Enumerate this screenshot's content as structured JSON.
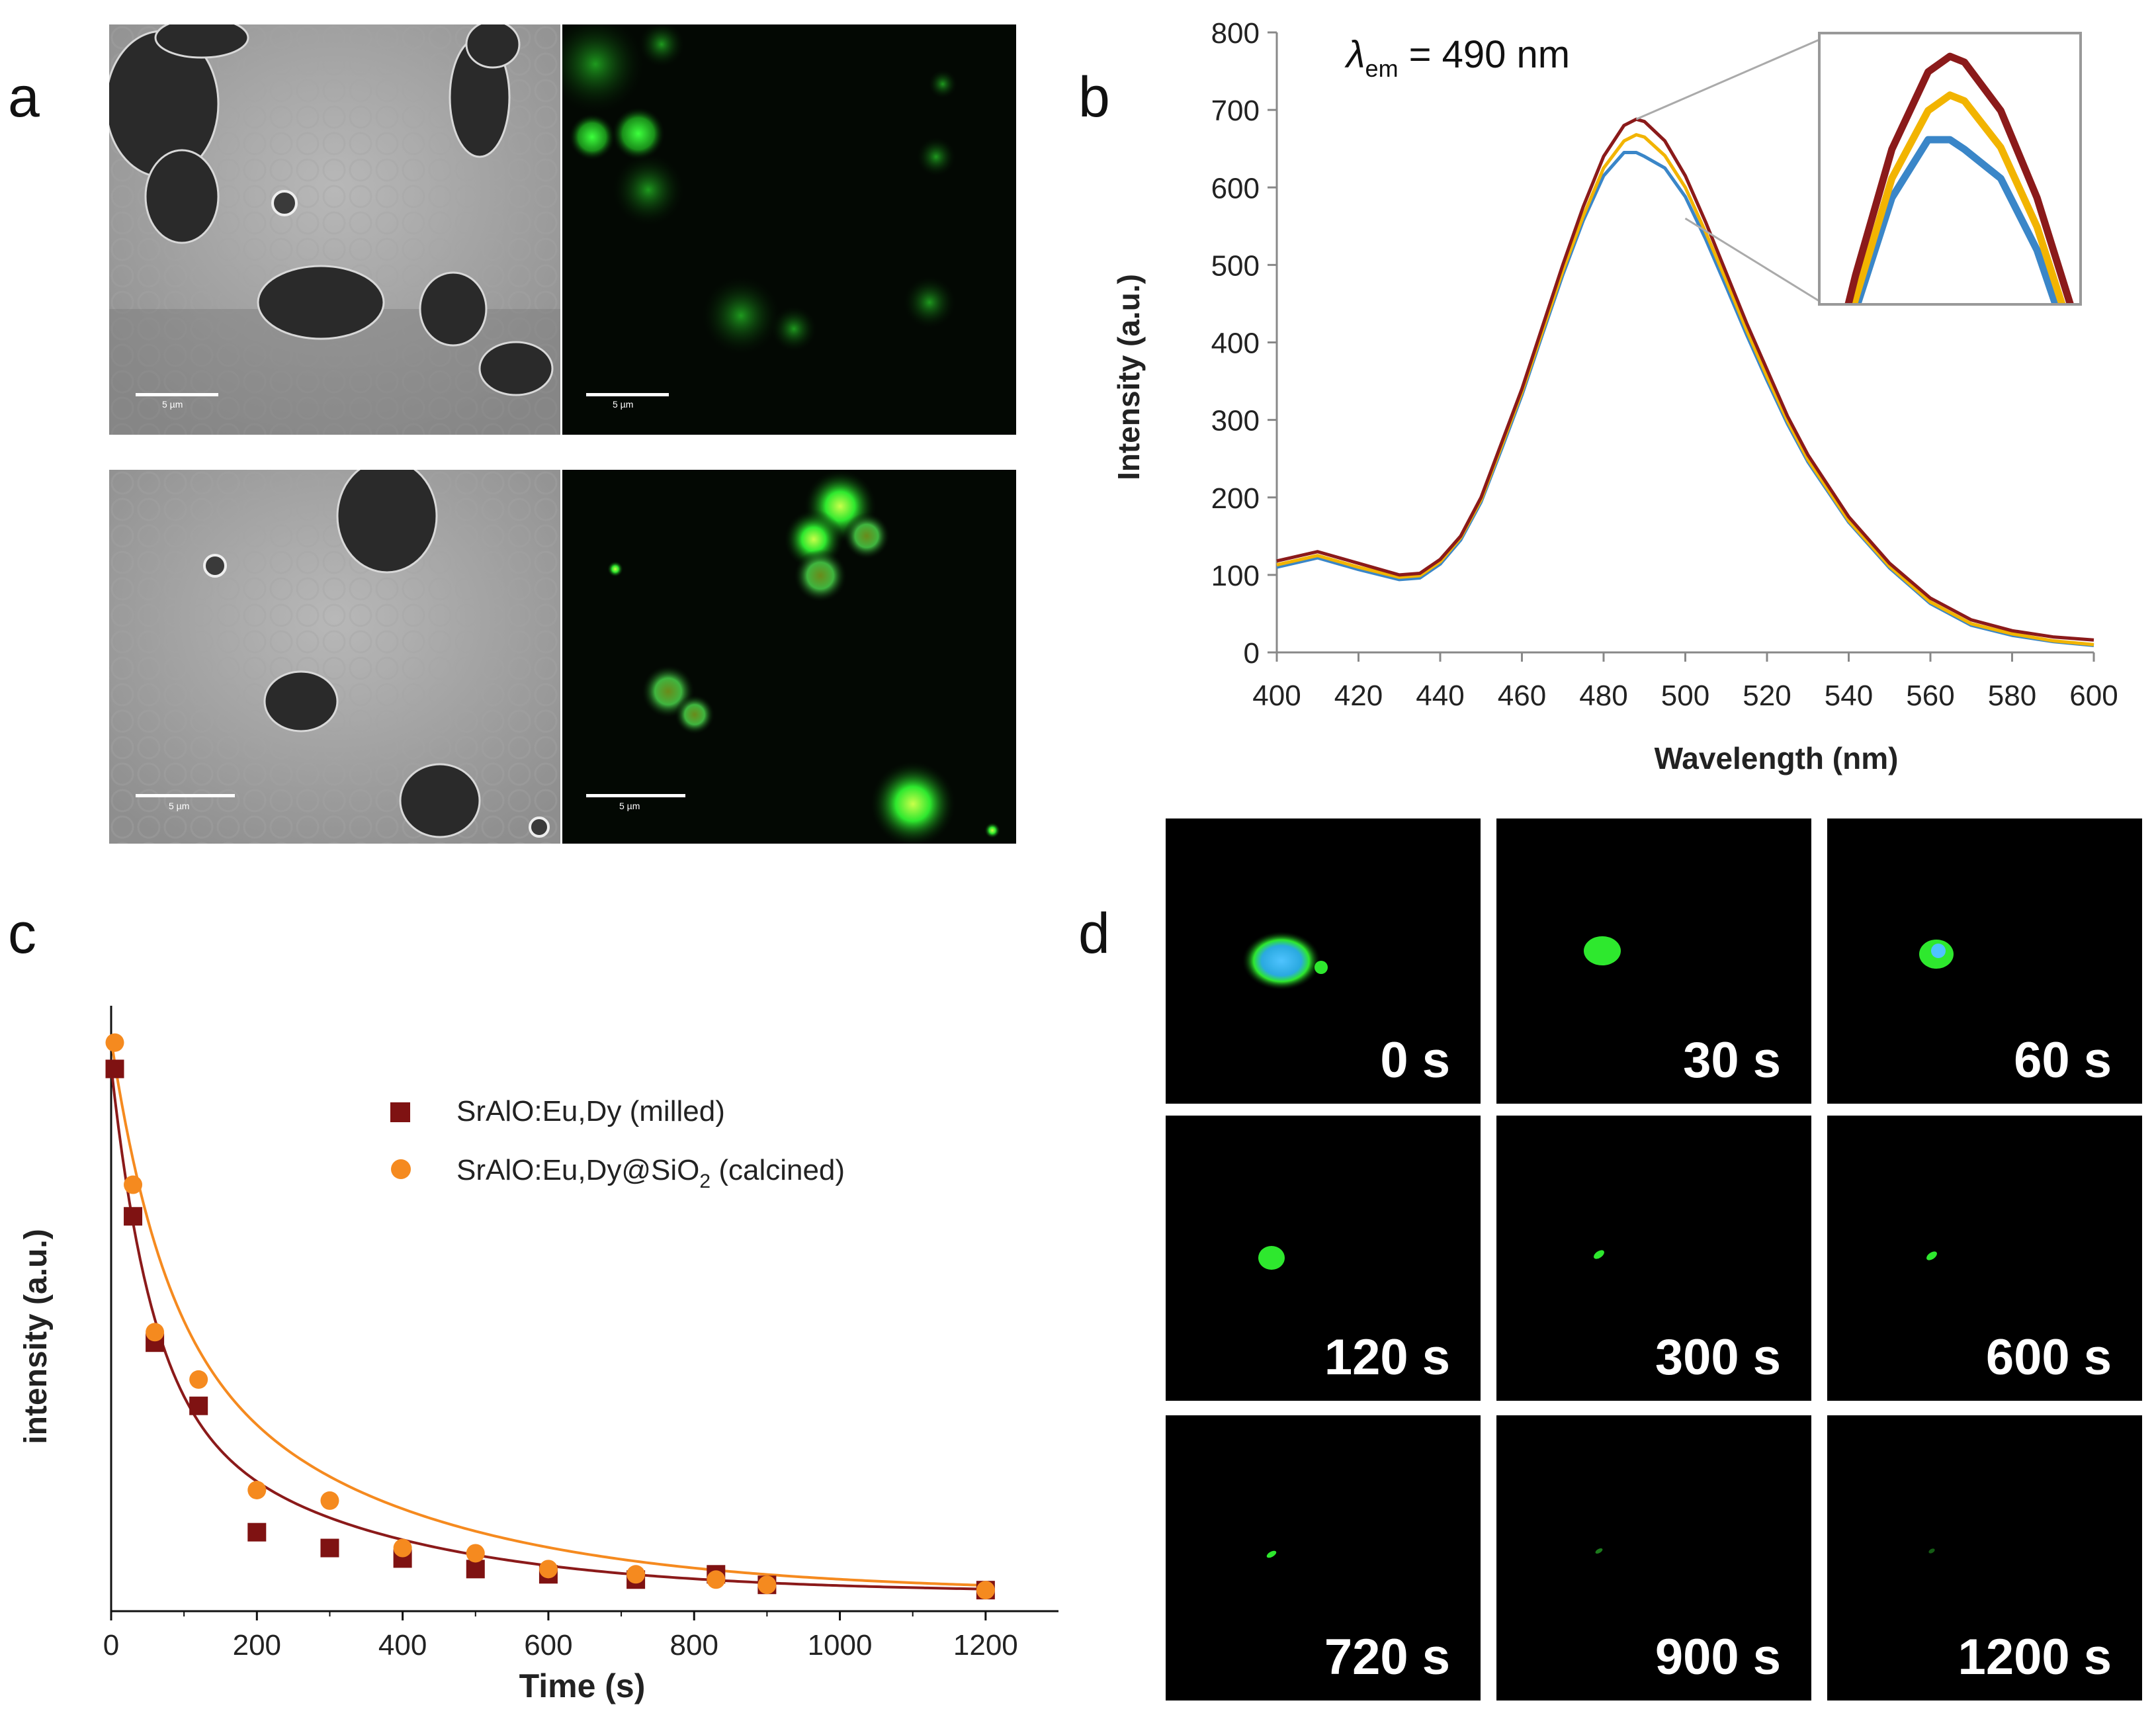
{
  "panels": {
    "a": "a",
    "b": "b",
    "c": "c",
    "d": "d"
  },
  "panel_a": {
    "scale_label": "5 µm"
  },
  "chart_b": {
    "annotation_prefix": "λ",
    "annotation_sub": "em",
    "annotation_suffix": " = 490 nm",
    "xlabel": "Wavelength (nm)",
    "ylabel": "Intensity (a.u.)"
  },
  "chart_c": {
    "xlabel": "Time (s)",
    "ylabel": "intensity (a.u.)",
    "legend_1": "SrAlO:Eu,Dy (milled)",
    "legend_2_main": "SrAlO:Eu,Dy@SiO",
    "legend_2_sub": "2",
    "legend_2_tail": " (calcined)"
  },
  "panel_d": {
    "labels": [
      "0 s",
      "30 s",
      "60 s",
      "120 s",
      "300 s",
      "600 s",
      "720 s",
      "900 s",
      "1200 s"
    ]
  },
  "colors": {
    "dark_red": "#8b1a1a",
    "gold": "#f2b400",
    "blue": "#3a86c8",
    "orange": "#f58a1f",
    "maroon_marker": "#7f1212",
    "glow_green": "#2ee82e"
  },
  "chart_data": [
    {
      "type": "line",
      "xlim": [
        400,
        600
      ],
      "ylim": [
        0,
        800
      ],
      "xticks": [
        400,
        420,
        440,
        460,
        480,
        500,
        520,
        540,
        560,
        580,
        600
      ],
      "yticks": [
        0,
        100,
        200,
        300,
        400,
        500,
        600,
        700,
        800
      ],
      "x": [
        400,
        410,
        420,
        430,
        435,
        440,
        445,
        450,
        455,
        460,
        465,
        470,
        475,
        480,
        485,
        488,
        490,
        495,
        500,
        505,
        510,
        515,
        520,
        525,
        530,
        540,
        550,
        560,
        570,
        580,
        590,
        600
      ],
      "series": [
        {
          "color": "#8b1a1a",
          "values": [
            118,
            130,
            115,
            100,
            102,
            120,
            150,
            200,
            270,
            340,
            420,
            500,
            575,
            640,
            680,
            688,
            685,
            660,
            615,
            555,
            490,
            425,
            365,
            305,
            255,
            175,
            115,
            70,
            42,
            28,
            20,
            16
          ]
        },
        {
          "color": "#f2b400",
          "values": [
            113,
            125,
            110,
            97,
            99,
            117,
            148,
            197,
            266,
            336,
            414,
            492,
            563,
            625,
            660,
            668,
            665,
            641,
            600,
            542,
            480,
            416,
            356,
            299,
            249,
            170,
            111,
            65,
            37,
            24,
            15,
            10
          ]
        },
        {
          "color": "#3a86c8",
          "values": [
            110,
            122,
            107,
            94,
            96,
            114,
            145,
            194,
            262,
            332,
            410,
            487,
            557,
            615,
            645,
            645,
            640,
            625,
            588,
            533,
            472,
            410,
            351,
            295,
            246,
            168,
            109,
            63,
            35,
            22,
            14,
            9
          ]
        }
      ]
    },
    {
      "type": "scatter",
      "xlim": [
        0,
        1300
      ],
      "xticks": [
        0,
        200,
        400,
        600,
        800,
        1000,
        1200
      ],
      "y_ticks_shown": false,
      "series": [
        {
          "name": "SrAlO:Eu,Dy (milled)",
          "color": "#7f1212",
          "marker": "square",
          "x": [
            5,
            30,
            60,
            120,
            200,
            300,
            400,
            500,
            600,
            720,
            830,
            900,
            1200
          ],
          "y": [
            1.0,
            0.72,
            0.48,
            0.36,
            0.12,
            0.09,
            0.07,
            0.05,
            0.04,
            0.03,
            0.04,
            0.02,
            0.01
          ]
        },
        {
          "name": "SrAlO:Eu,Dy@SiO2 (calcined)",
          "color": "#f58a1f",
          "marker": "circle",
          "x": [
            5,
            30,
            60,
            120,
            200,
            300,
            400,
            500,
            600,
            720,
            830,
            900,
            1200
          ],
          "y": [
            1.05,
            0.78,
            0.5,
            0.41,
            0.2,
            0.18,
            0.09,
            0.08,
            0.05,
            0.04,
            0.03,
            0.02,
            0.01
          ]
        }
      ]
    }
  ]
}
